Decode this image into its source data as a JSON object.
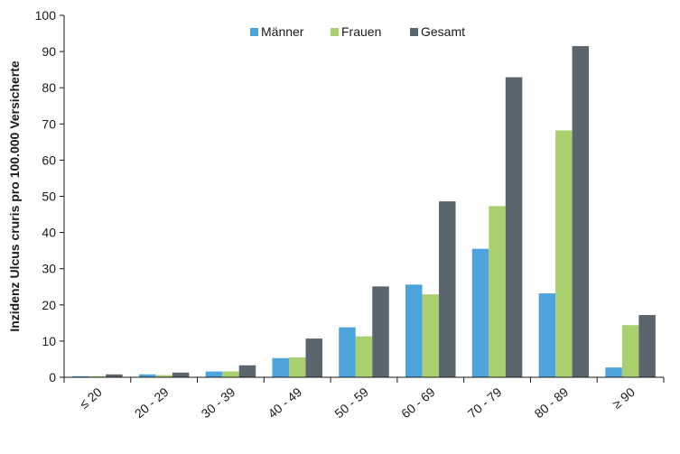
{
  "chart_data": {
    "type": "bar",
    "title": "",
    "xlabel": "",
    "ylabel": "Inzidenz Ulcus cruris pro 100.000 Versicherte",
    "ylim": [
      0,
      100
    ],
    "yticks": [
      0,
      10,
      20,
      30,
      40,
      50,
      60,
      70,
      80,
      90,
      100
    ],
    "categories": [
      "≤ 20",
      "20 - 29",
      "30 - 39",
      "40 - 49",
      "50 - 59",
      "60 - 69",
      "70 - 79",
      "80 - 89",
      "≥ 90"
    ],
    "series": [
      {
        "name": "Männer",
        "color": "#4da3db",
        "values": [
          0.3,
          0.8,
          1.6,
          5.3,
          13.8,
          25.6,
          35.5,
          23.2,
          2.7
        ]
      },
      {
        "name": "Frauen",
        "color": "#a9cf6e",
        "values": [
          0.3,
          0.6,
          1.6,
          5.5,
          11.3,
          22.9,
          47.3,
          68.2,
          14.4
        ]
      },
      {
        "name": "Gesamt",
        "color": "#5a656e",
        "values": [
          0.8,
          1.3,
          3.3,
          10.7,
          25.1,
          48.6,
          82.9,
          91.5,
          17.2
        ]
      }
    ],
    "legend_position": "top-center",
    "grid": false
  }
}
